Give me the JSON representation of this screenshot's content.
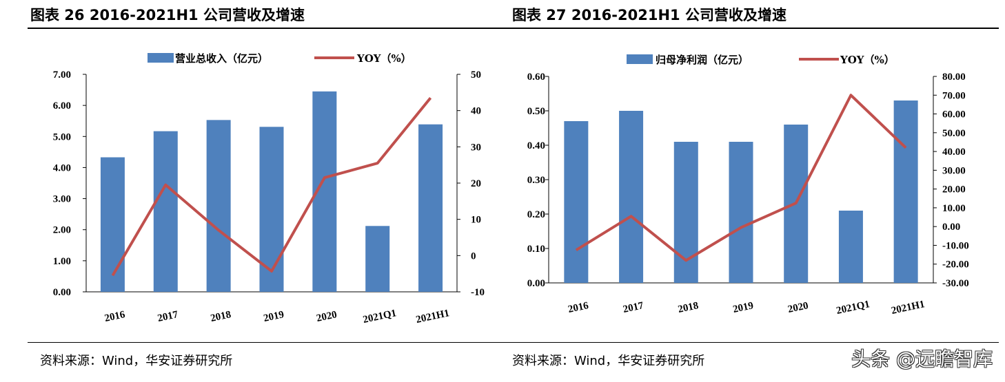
{
  "figures": [
    {
      "title": "图表 26 2016-2021H1 公司营收及增速",
      "source": "资料来源：Wind，华安证券研究所"
    },
    {
      "title": "图表 27 2016-2021H1 公司营收及增速",
      "source": "资料来源：Wind，华安证券研究所"
    }
  ],
  "watermark": "头条 @远瞻智库",
  "chart_data": [
    {
      "type": "bar+line",
      "categories": [
        "2016",
        "2017",
        "2018",
        "2019",
        "2020",
        "2021Q1",
        "2021H1"
      ],
      "series": [
        {
          "name": "营业总收入（亿元）",
          "type": "bar",
          "axis": "left",
          "color": "#4f81bd",
          "values": [
            4.33,
            5.17,
            5.53,
            5.31,
            6.45,
            2.12,
            5.39
          ]
        },
        {
          "name": "YOY（%）",
          "type": "line",
          "axis": "right",
          "color": "#c0504d",
          "values": [
            -5.5,
            19.5,
            7.0,
            -4.3,
            21.5,
            25.5,
            43.5
          ]
        }
      ],
      "y_left": {
        "min": 0,
        "max": 7,
        "step": 1,
        "ticks": [
          "0.00",
          "1.00",
          "2.00",
          "3.00",
          "4.00",
          "5.00",
          "6.00",
          "7.00"
        ]
      },
      "y_right": {
        "min": -10,
        "max": 50,
        "step": 10,
        "ticks": [
          "-10",
          "0",
          "10",
          "20",
          "30",
          "40",
          "50"
        ]
      },
      "legend_position": "top",
      "grid": false
    },
    {
      "type": "bar+line",
      "categories": [
        "2016",
        "2017",
        "2018",
        "2019",
        "2020",
        "2021Q1",
        "2021H1"
      ],
      "series": [
        {
          "name": "归母净利润（亿元）",
          "type": "bar",
          "axis": "left",
          "color": "#4f81bd",
          "values": [
            0.47,
            0.5,
            0.41,
            0.41,
            0.46,
            0.21,
            0.53
          ]
        },
        {
          "name": "YOY（%）",
          "type": "line",
          "axis": "right",
          "color": "#c0504d",
          "values": [
            -12.5,
            5.5,
            -18.0,
            -0.5,
            12.5,
            70.0,
            42.0
          ]
        }
      ],
      "y_left": {
        "min": 0,
        "max": 0.6,
        "step": 0.1,
        "ticks": [
          "0.00",
          "0.10",
          "0.20",
          "0.30",
          "0.40",
          "0.50",
          "0.60"
        ]
      },
      "y_right": {
        "min": -30,
        "max": 80,
        "step": 10,
        "ticks": [
          "-30.00",
          "-20.00",
          "-10.00",
          "0.00",
          "10.00",
          "20.00",
          "30.00",
          "40.00",
          "50.00",
          "60.00",
          "70.00",
          "80.00"
        ]
      },
      "legend_position": "top",
      "grid": false
    }
  ]
}
